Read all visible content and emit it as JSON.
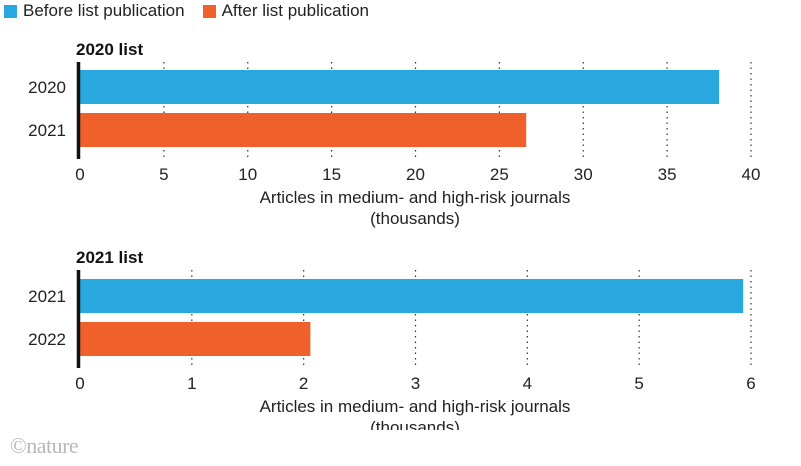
{
  "legend": [
    {
      "label": "Before list publication",
      "color": "#29a8e0"
    },
    {
      "label": "After list publication",
      "color": "#f0602a"
    }
  ],
  "logo": "©nature",
  "chart_data": [
    {
      "type": "bar",
      "orientation": "horizontal",
      "title": "2020 list",
      "categories": [
        "2020",
        "2021"
      ],
      "values": [
        38.1,
        26.6
      ],
      "colors": [
        "#29a8e0",
        "#f0602a"
      ],
      "xlim": [
        0,
        40
      ],
      "xticks": [
        0,
        5,
        10,
        15,
        20,
        25,
        30,
        35,
        40
      ],
      "xlabel": [
        "Articles in medium- and high-risk journals",
        "(thousands)"
      ],
      "grid": "vertical dotted"
    },
    {
      "type": "bar",
      "orientation": "horizontal",
      "title": "2021 list",
      "categories": [
        "2021",
        "2022"
      ],
      "values": [
        5.93,
        2.06
      ],
      "colors": [
        "#29a8e0",
        "#f0602a"
      ],
      "xlim": [
        0,
        6
      ],
      "xticks": [
        0,
        1,
        2,
        3,
        4,
        5,
        6
      ],
      "xlabel": [
        "Articles in medium- and high-risk journals",
        "(thousands)"
      ],
      "grid": "vertical dotted"
    }
  ]
}
